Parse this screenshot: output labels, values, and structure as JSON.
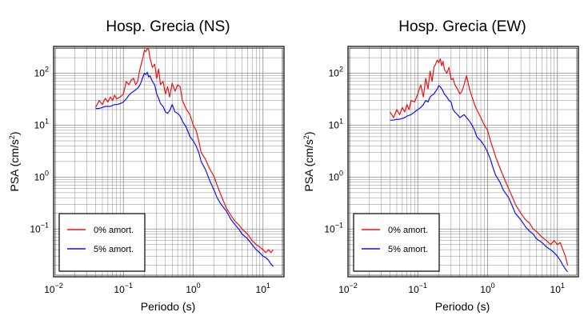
{
  "chart_data": [
    {
      "type": "line",
      "title": "Hosp. Grecia (NS)",
      "xlabel": "Periodo (s)",
      "ylabel_main": "PSA (cm/s",
      "ylabel_sup": "2",
      "ylabel_close": ")",
      "x_scale": "log",
      "y_scale": "log",
      "xlim": [
        0.01,
        20
      ],
      "ylim": [
        0.012,
        330
      ],
      "x_ticks": [
        {
          "value": 0.01,
          "base": "10",
          "exp": "−2"
        },
        {
          "value": 0.1,
          "base": "10",
          "exp": "−1"
        },
        {
          "value": 1,
          "base": "10",
          "exp": "0"
        },
        {
          "value": 10,
          "base": "10",
          "exp": "1"
        }
      ],
      "y_ticks": [
        {
          "value": 0.1,
          "base": "10",
          "exp": "−1"
        },
        {
          "value": 1,
          "base": "10",
          "exp": "0"
        },
        {
          "value": 10,
          "base": "10",
          "exp": "1"
        },
        {
          "value": 100,
          "base": "10",
          "exp": "2"
        }
      ],
      "grid": true,
      "legend_position": "bottom-left",
      "series": [
        {
          "name": "0% amort.",
          "color": "#ee1111",
          "x": [
            0.04,
            0.045,
            0.05,
            0.055,
            0.06,
            0.065,
            0.07,
            0.075,
            0.08,
            0.09,
            0.1,
            0.11,
            0.12,
            0.13,
            0.14,
            0.15,
            0.16,
            0.17,
            0.18,
            0.19,
            0.2,
            0.21,
            0.22,
            0.23,
            0.24,
            0.26,
            0.28,
            0.3,
            0.32,
            0.34,
            0.37,
            0.4,
            0.43,
            0.46,
            0.5,
            0.55,
            0.6,
            0.65,
            0.7,
            0.8,
            0.9,
            1.0,
            1.1,
            1.2,
            1.3,
            1.5,
            1.7,
            2.0,
            2.2,
            2.5,
            3.0,
            3.5,
            4.0,
            4.5,
            5.0,
            6.0,
            7.0,
            8.0,
            9.0,
            10.0,
            11.0,
            12.0,
            13.0,
            14.0
          ],
          "y": [
            22,
            30,
            25,
            33,
            28,
            35,
            30,
            38,
            32,
            35,
            40,
            70,
            60,
            75,
            80,
            60,
            70,
            110,
            150,
            200,
            280,
            260,
            300,
            290,
            200,
            130,
            150,
            80,
            120,
            60,
            70,
            40,
            55,
            35,
            65,
            45,
            60,
            55,
            30,
            20,
            16,
            10,
            8,
            5,
            3,
            2.2,
            1.5,
            1.0,
            0.7,
            0.45,
            0.25,
            0.18,
            0.14,
            0.12,
            0.1,
            0.08,
            0.06,
            0.05,
            0.045,
            0.04,
            0.035,
            0.04,
            0.035,
            0.04
          ]
        },
        {
          "name": "5% amort.",
          "color": "#1111ee",
          "x": [
            0.04,
            0.045,
            0.05,
            0.055,
            0.06,
            0.065,
            0.07,
            0.075,
            0.08,
            0.09,
            0.1,
            0.11,
            0.12,
            0.13,
            0.14,
            0.15,
            0.16,
            0.17,
            0.18,
            0.19,
            0.2,
            0.21,
            0.22,
            0.23,
            0.24,
            0.26,
            0.28,
            0.3,
            0.32,
            0.34,
            0.37,
            0.4,
            0.43,
            0.46,
            0.5,
            0.55,
            0.6,
            0.65,
            0.7,
            0.8,
            0.9,
            1.0,
            1.1,
            1.2,
            1.3,
            1.5,
            1.7,
            2.0,
            2.2,
            2.5,
            3.0,
            3.5,
            4.0,
            4.5,
            5.0,
            6.0,
            7.0,
            8.0,
            9.0,
            10.0,
            11.0,
            12.0,
            13.0,
            14.0
          ],
          "y": [
            21,
            21,
            22,
            23,
            23,
            23,
            24,
            25,
            25,
            26,
            28,
            32,
            38,
            42,
            45,
            48,
            52,
            58,
            68,
            85,
            100,
            95,
            105,
            85,
            90,
            70,
            60,
            40,
            33,
            26,
            23,
            18,
            17,
            19,
            25,
            18,
            17,
            15,
            12,
            9,
            6,
            5,
            4,
            3,
            2,
            1.4,
            0.9,
            0.55,
            0.4,
            0.3,
            0.22,
            0.15,
            0.12,
            0.1,
            0.08,
            0.065,
            0.05,
            0.04,
            0.035,
            0.03,
            0.028,
            0.025,
            0.021,
            0.019
          ]
        }
      ]
    },
    {
      "type": "line",
      "title": "Hosp. Grecia (EW)",
      "xlabel": "Periodo (s)",
      "ylabel_main": "PSA (cm/s",
      "ylabel_sup": "2",
      "ylabel_close": ")",
      "x_scale": "log",
      "y_scale": "log",
      "xlim": [
        0.01,
        20
      ],
      "ylim": [
        0.012,
        330
      ],
      "x_ticks": [
        {
          "value": 0.01,
          "base": "10",
          "exp": "−2"
        },
        {
          "value": 0.1,
          "base": "10",
          "exp": "−1"
        },
        {
          "value": 1,
          "base": "10",
          "exp": "0"
        },
        {
          "value": 10,
          "base": "10",
          "exp": "1"
        }
      ],
      "y_ticks": [
        {
          "value": 0.1,
          "base": "10",
          "exp": "−1"
        },
        {
          "value": 1,
          "base": "10",
          "exp": "0"
        },
        {
          "value": 10,
          "base": "10",
          "exp": "1"
        },
        {
          "value": 100,
          "base": "10",
          "exp": "2"
        }
      ],
      "grid": true,
      "legend_position": "bottom-left",
      "series": [
        {
          "name": "0% amort.",
          "color": "#ee1111",
          "x": [
            0.04,
            0.045,
            0.05,
            0.055,
            0.06,
            0.065,
            0.07,
            0.075,
            0.08,
            0.09,
            0.1,
            0.11,
            0.12,
            0.13,
            0.14,
            0.15,
            0.16,
            0.17,
            0.18,
            0.19,
            0.2,
            0.21,
            0.22,
            0.23,
            0.24,
            0.26,
            0.28,
            0.3,
            0.32,
            0.34,
            0.37,
            0.4,
            0.43,
            0.46,
            0.5,
            0.55,
            0.6,
            0.65,
            0.7,
            0.8,
            0.9,
            1.0,
            1.1,
            1.2,
            1.3,
            1.5,
            1.7,
            2.0,
            2.2,
            2.5,
            3.0,
            3.5,
            4.0,
            4.5,
            5.0,
            6.0,
            7.0,
            8.0,
            9.0,
            10.0,
            11.0,
            12.0,
            13.0,
            14.0
          ],
          "y": [
            18,
            14,
            20,
            16,
            22,
            18,
            25,
            20,
            30,
            28,
            40,
            60,
            35,
            80,
            50,
            110,
            70,
            130,
            150,
            180,
            160,
            190,
            140,
            170,
            120,
            100,
            130,
            75,
            80,
            60,
            50,
            40,
            45,
            60,
            90,
            50,
            35,
            25,
            20,
            14,
            10,
            8,
            5,
            3.5,
            2.5,
            1.5,
            1.0,
            0.6,
            0.45,
            0.3,
            0.2,
            0.15,
            0.13,
            0.1,
            0.09,
            0.07,
            0.06,
            0.05,
            0.06,
            0.05,
            0.055,
            0.04,
            0.03,
            0.02
          ]
        },
        {
          "name": "5% amort.",
          "color": "#1111ee",
          "x": [
            0.04,
            0.045,
            0.05,
            0.055,
            0.06,
            0.065,
            0.07,
            0.075,
            0.08,
            0.09,
            0.1,
            0.11,
            0.12,
            0.13,
            0.14,
            0.15,
            0.16,
            0.17,
            0.18,
            0.19,
            0.2,
            0.21,
            0.22,
            0.23,
            0.24,
            0.26,
            0.28,
            0.3,
            0.32,
            0.34,
            0.37,
            0.4,
            0.43,
            0.46,
            0.5,
            0.55,
            0.6,
            0.65,
            0.7,
            0.8,
            0.9,
            1.0,
            1.1,
            1.2,
            1.3,
            1.5,
            1.7,
            2.0,
            2.2,
            2.5,
            3.0,
            3.5,
            4.0,
            4.5,
            5.0,
            6.0,
            7.0,
            8.0,
            9.0,
            10.0,
            11.0,
            12.0,
            13.0,
            14.0
          ],
          "y": [
            12.5,
            12.5,
            13,
            13,
            13.5,
            14,
            15,
            15.5,
            16,
            18,
            20,
            22,
            25,
            30,
            28,
            35,
            38,
            40,
            45,
            50,
            58,
            55,
            50,
            45,
            40,
            35,
            30,
            28,
            20,
            18,
            16,
            14,
            15,
            16,
            14,
            12,
            10,
            8,
            6,
            5,
            4,
            3,
            2.2,
            1.5,
            1.1,
            0.8,
            0.55,
            0.4,
            0.3,
            0.2,
            0.15,
            0.11,
            0.09,
            0.08,
            0.065,
            0.055,
            0.045,
            0.04,
            0.035,
            0.03,
            0.025,
            0.02,
            0.017,
            0.015
          ]
        }
      ]
    }
  ]
}
